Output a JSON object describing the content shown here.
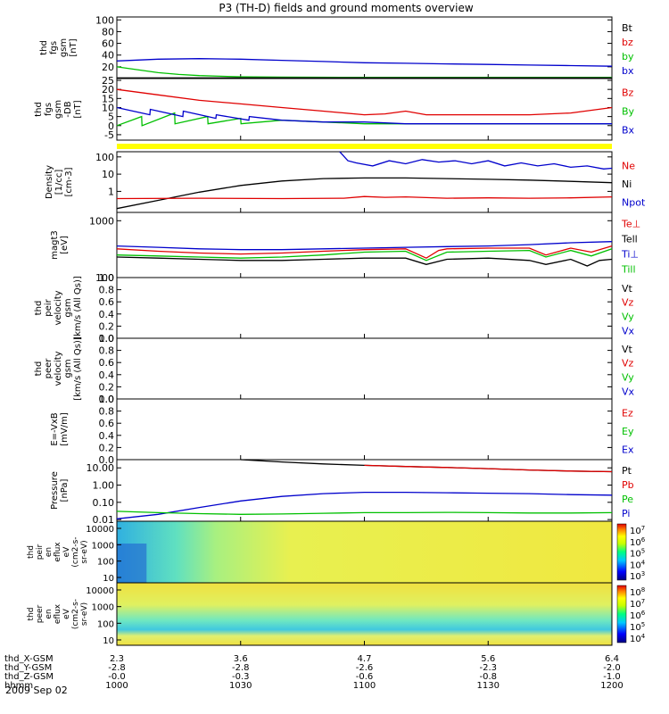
{
  "chart_data": {
    "type": "line",
    "title": "P3 (TH-D) fields and ground moments overview",
    "date": "2009 Sep 02",
    "time_ticks": [
      "1000",
      "1030",
      "1100",
      "1130",
      "1200"
    ],
    "bottom_axis": [
      {
        "label": "thd_X-GSM",
        "values": [
          "2.3",
          "3.6",
          "4.7",
          "5.6",
          "6.4"
        ]
      },
      {
        "label": "thd_Y-GSM",
        "values": [
          "-2.8",
          "-2.8",
          "-2.6",
          "-2.3",
          "-2.0"
        ]
      },
      {
        "label": "thd_Z-GSM",
        "values": [
          "-0.0",
          "-0.3",
          "-0.6",
          "-0.8",
          "-1.0"
        ]
      },
      {
        "label": "hhmm",
        "values": [
          "1000",
          "1030",
          "1100",
          "1130",
          "1200"
        ]
      }
    ],
    "panels": [
      {
        "ylabel": [
          "thd",
          "fgs",
          "gsm",
          "[nT]"
        ],
        "yscale": "linear",
        "ylim": [
          0,
          105
        ],
        "yticks": [
          "100",
          "80",
          "60",
          "40",
          "20"
        ],
        "legend": [
          {
            "name": "Bt",
            "color": "#000000"
          },
          {
            "name": "bz",
            "color": "#e00000"
          },
          {
            "name": "by",
            "color": "#00c000"
          },
          {
            "name": "bx",
            "color": "#0000cc"
          }
        ],
        "series": [
          {
            "name": "bx",
            "color": "#0000cc",
            "x": [
              0,
              10,
              20,
              30,
              40,
              50,
              60,
              70,
              80,
              90,
              100,
              110,
              120
            ],
            "y": [
              30,
              33,
              34,
              33,
              31,
              29,
              27,
              26,
              25,
              24,
              23,
              22,
              21
            ]
          },
          {
            "name": "by",
            "color": "#00c000",
            "x": [
              0,
              5,
              10,
              15,
              20,
              25,
              30,
              40,
              60,
              80,
              100,
              120
            ],
            "y": [
              20,
              15,
              10,
              7,
              5,
              4,
              3,
              2.5,
              2,
              2,
              2,
              2
            ]
          },
          {
            "name": "Bt",
            "color": "#000000",
            "x": [
              0,
              20,
              40,
              60,
              80,
              100,
              120
            ],
            "y": [
              1,
              1,
              1,
              1,
              1,
              1,
              1
            ]
          }
        ]
      },
      {
        "ylabel": [
          "thd",
          "fgs",
          "gsm",
          "-DB",
          "[nT]"
        ],
        "yscale": "linear",
        "ylim": [
          -8,
          26
        ],
        "yticks": [
          "25",
          "20",
          "15",
          "10",
          "5",
          "0",
          "-5"
        ],
        "legend": [
          {
            "name": "Bz",
            "color": "#e00000"
          },
          {
            "name": "By",
            "color": "#00c000"
          },
          {
            "name": "Bx",
            "color": "#0000cc"
          }
        ],
        "series": [
          {
            "name": "Bz",
            "color": "#e00000",
            "x": [
              0,
              10,
              20,
              30,
              40,
              50,
              60,
              65,
              70,
              75,
              80,
              90,
              100,
              110,
              120
            ],
            "y": [
              20,
              17,
              14,
              12,
              10,
              8,
              6,
              6.5,
              8,
              6,
              6,
              6,
              6,
              7,
              10
            ]
          },
          {
            "name": "By",
            "color": "#00c000",
            "x": [
              0,
              6,
              6.1,
              14,
              14.1,
              22,
              22.1,
              30,
              30.1,
              40,
              50,
              60,
              80,
              100,
              120
            ],
            "y": [
              0,
              5,
              0,
              7,
              1,
              5,
              1,
              4,
              1,
              3,
              2,
              1,
              1,
              1,
              1
            ]
          },
          {
            "name": "Bx",
            "color": "#0000cc",
            "x": [
              0,
              8,
              8.1,
              16,
              16.1,
              24,
              24.1,
              32,
              32.1,
              40,
              50,
              60,
              70,
              80,
              90,
              100,
              110,
              120
            ],
            "y": [
              10,
              6,
              9,
              5,
              8,
              4,
              6,
              3,
              5,
              3,
              2,
              2,
              1,
              1,
              1,
              1,
              1,
              1
            ]
          }
        ]
      },
      {
        "ylabel": [
          "Density",
          "[1/cc]",
          "[cm-3]"
        ],
        "yscale": "log",
        "ylim": [
          0.06,
          200
        ],
        "yticks": [
          "100",
          "10",
          "1"
        ],
        "legend": [
          {
            "name": "Ne",
            "color": "#e00000"
          },
          {
            "name": "Ni",
            "color": "#000000"
          },
          {
            "name": "Npot",
            "color": "#0000cc"
          }
        ],
        "series": [
          {
            "name": "Npot",
            "color": "#0000cc",
            "x": [
              54,
              56,
              58,
              62,
              66,
              70,
              74,
              78,
              82,
              86,
              90,
              94,
              98,
              102,
              106,
              110,
              114,
              118,
              120
            ],
            "y": [
              200,
              60,
              45,
              30,
              60,
              40,
              70,
              50,
              60,
              40,
              60,
              30,
              45,
              30,
              40,
              25,
              30,
              20,
              22
            ]
          },
          {
            "name": "Ni",
            "color": "#000000",
            "x": [
              0,
              10,
              20,
              30,
              40,
              50,
              60,
              70,
              80,
              90,
              100,
              110,
              120
            ],
            "y": [
              0.1,
              0.3,
              0.9,
              2.2,
              4,
              5.5,
              6,
              6,
              5.5,
              5,
              4.5,
              3.8,
              3.2
            ]
          },
          {
            "name": "Ne",
            "color": "#e00000",
            "x": [
              0,
              20,
              40,
              55,
              60,
              65,
              70,
              80,
              90,
              100,
              110,
              120
            ],
            "y": [
              0.38,
              0.4,
              0.38,
              0.4,
              0.5,
              0.45,
              0.48,
              0.4,
              0.42,
              0.4,
              0.42,
              0.48
            ]
          }
        ]
      },
      {
        "ylabel": [
          "magt3",
          "[eV]"
        ],
        "yscale": "log",
        "ylim": [
          100,
          1400
        ],
        "yticks": [
          "1000",
          "100"
        ],
        "legend": [
          {
            "name": "Te⊥",
            "color": "#e00000"
          },
          {
            "name": "Tell",
            "color": "#000000"
          },
          {
            "name": "Ti⊥",
            "color": "#0000cc"
          },
          {
            "name": "Till",
            "color": "#00c000"
          }
        ],
        "series": [
          {
            "name": "Ti⊥",
            "color": "#0000cc",
            "x": [
              0,
              10,
              20,
              30,
              40,
              50,
              60,
              70,
              80,
              90,
              100,
              110,
              120
            ],
            "y": [
              360,
              340,
              320,
              310,
              310,
              320,
              330,
              340,
              350,
              360,
              380,
              410,
              430
            ]
          },
          {
            "name": "Te⊥",
            "color": "#e00000",
            "x": [
              0,
              10,
              20,
              30,
              40,
              50,
              60,
              70,
              75,
              78,
              80,
              90,
              100,
              104,
              110,
              115,
              120
            ],
            "y": [
              320,
              290,
              270,
              260,
              270,
              290,
              310,
              320,
              220,
              300,
              320,
              330,
              330,
              250,
              330,
              280,
              360
            ]
          },
          {
            "name": "Till",
            "color": "#00c000",
            "x": [
              0,
              10,
              20,
              30,
              40,
              50,
              60,
              70,
              75,
              80,
              90,
              100,
              104,
              110,
              115,
              120
            ],
            "y": [
              250,
              240,
              230,
              220,
              230,
              250,
              280,
              290,
              200,
              280,
              290,
              300,
              230,
              300,
              240,
              320
            ]
          },
          {
            "name": "Tell",
            "color": "#000000",
            "x": [
              0,
              10,
              20,
              30,
              40,
              50,
              60,
              70,
              75,
              80,
              90,
              100,
              104,
              110,
              114,
              117,
              120
            ],
            "y": [
              230,
              220,
              210,
              200,
              200,
              210,
              220,
              220,
              170,
              210,
              220,
              200,
              170,
              210,
              160,
              200,
              210
            ]
          }
        ]
      },
      {
        "ylabel": [
          "thd",
          "peir",
          "velocity",
          "gsm",
          "[km/s (All Qs)]"
        ],
        "yscale": "linear",
        "ylim": [
          0,
          1
        ],
        "yticks": [
          "1.0",
          "0.8",
          "0.6",
          "0.4",
          "0.2",
          "0.0"
        ],
        "legend": [
          {
            "name": "Vt",
            "color": "#000000"
          },
          {
            "name": "Vz",
            "color": "#e00000"
          },
          {
            "name": "Vy",
            "color": "#00c000"
          },
          {
            "name": "Vx",
            "color": "#0000cc"
          }
        ],
        "series": []
      },
      {
        "ylabel": [
          "thd",
          "peer",
          "velocity",
          "gsm",
          "[km/s (All Qs)]"
        ],
        "yscale": "linear",
        "ylim": [
          0,
          1
        ],
        "yticks": [
          "1.0",
          "0.8",
          "0.6",
          "0.4",
          "0.2",
          "0.0"
        ],
        "legend": [
          {
            "name": "Vt",
            "color": "#000000"
          },
          {
            "name": "Vz",
            "color": "#e00000"
          },
          {
            "name": "Vy",
            "color": "#00c000"
          },
          {
            "name": "Vx",
            "color": "#0000cc"
          }
        ],
        "series": []
      },
      {
        "ylabel": [
          "E=-VxB",
          "[mV/m]"
        ],
        "yscale": "linear",
        "ylim": [
          0,
          1
        ],
        "yticks": [
          "1.0",
          "0.8",
          "0.6",
          "0.4",
          "0.2",
          "0.0"
        ],
        "legend": [
          {
            "name": "Ez",
            "color": "#e00000"
          },
          {
            "name": "Ey",
            "color": "#00c000"
          },
          {
            "name": "Ex",
            "color": "#0000cc"
          }
        ],
        "series": []
      },
      {
        "ylabel": [
          "Pressure",
          "[nPa]"
        ],
        "yscale": "log",
        "ylim": [
          0.008,
          30
        ],
        "yticks": [
          "10.00",
          "1.00",
          "0.10",
          "0.01"
        ],
        "legend": [
          {
            "name": "Pt",
            "color": "#000000"
          },
          {
            "name": "Pb",
            "color": "#e00000"
          },
          {
            "name": "Pe",
            "color": "#00c000"
          },
          {
            "name": "Pi",
            "color": "#0000cc"
          }
        ],
        "series": [
          {
            "name": "Pt",
            "color": "#000000",
            "x": [
              30,
              40,
              50,
              60,
              70,
              80,
              90,
              100,
              110,
              120
            ],
            "y": [
              30,
              22,
              17,
              14,
              12,
              10.5,
              9,
              7.5,
              6.5,
              6
            ]
          },
          {
            "name": "Pb",
            "color": "#e00000",
            "x": [
              60,
              70,
              80,
              90,
              100,
              110,
              120
            ],
            "y": [
              14,
              12,
              10.5,
              9,
              7.5,
              6.5,
              6
            ]
          },
          {
            "name": "Pi",
            "color": "#0000cc",
            "x": [
              0,
              10,
              20,
              30,
              40,
              50,
              60,
              70,
              80,
              90,
              100,
              110,
              120
            ],
            "y": [
              0.011,
              0.02,
              0.05,
              0.12,
              0.22,
              0.32,
              0.38,
              0.38,
              0.36,
              0.34,
              0.32,
              0.28,
              0.26
            ]
          },
          {
            "name": "Pe",
            "color": "#00c000",
            "x": [
              0,
              10,
              20,
              30,
              40,
              50,
              60,
              70,
              80,
              90,
              100,
              110,
              120
            ],
            "y": [
              0.03,
              0.025,
              0.022,
              0.02,
              0.021,
              0.023,
              0.025,
              0.025,
              0.026,
              0.025,
              0.024,
              0.024,
              0.025
            ]
          }
        ]
      }
    ],
    "spectrograms": [
      {
        "ylabel": [
          "thd",
          "peir",
          "en",
          "eflux",
          "eV",
          "(cm2-s-",
          "sr-eV)"
        ],
        "yticks": [
          "10000",
          "1000",
          "100",
          "10"
        ],
        "cbar_ticks": [
          "10^7",
          "10^6",
          "10^5",
          "10^4",
          "10^3"
        ]
      },
      {
        "ylabel": [
          "thd",
          "peer",
          "en",
          "eflux",
          "eV",
          "(cm2-s-",
          "sr-eV)"
        ],
        "yticks": [
          "10000",
          "1000",
          "100",
          "10"
        ],
        "cbar_ticks": [
          "10^8",
          "10^7",
          "10^6",
          "10^5",
          "10^4"
        ]
      }
    ],
    "xlim": [
      0,
      120
    ]
  }
}
